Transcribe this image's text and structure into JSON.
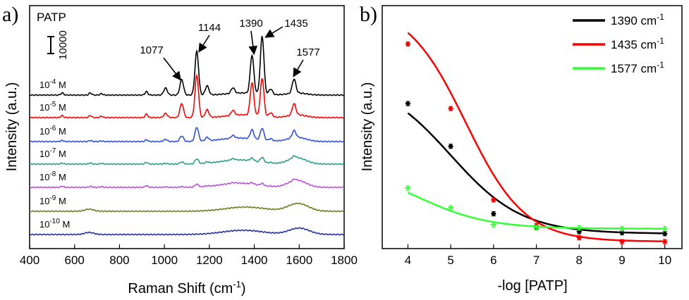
{
  "chart_data": [
    {
      "panel": "a)",
      "type": "line",
      "xlabel": "Raman Shift (cm",
      "xlabel_sup": "-1",
      "xlabel_close": ")",
      "ylabel": "Intensity (a.u.)",
      "xlim": [
        400,
        1800
      ],
      "xticks": [
        "400",
        "600",
        "800",
        "1000",
        "1200",
        "1400",
        "1600",
        "1800"
      ],
      "sample_label": "PATP",
      "scale_bar_label": "10000",
      "peak_labels": [
        "1077",
        "1144",
        "1390",
        "1435",
        "1577"
      ],
      "concentration_unit": "M",
      "series": [
        {
          "label_base": "10",
          "label_exp": "-4",
          "color": "#000000"
        },
        {
          "label_base": "10",
          "label_exp": "-5",
          "color": "#ff0000"
        },
        {
          "label_base": "10",
          "label_exp": "-6",
          "color": "#2e4fd6"
        },
        {
          "label_base": "10",
          "label_exp": "-7",
          "color": "#2a9d8a"
        },
        {
          "label_base": "10",
          "label_exp": "-8",
          "color": "#b84fd9"
        },
        {
          "label_base": "10",
          "label_exp": "-9",
          "color": "#6f7a1e"
        },
        {
          "label_base": "10",
          "label_exp": "-10",
          "color": "#1f2fa0"
        }
      ]
    },
    {
      "panel": "b)",
      "type": "line",
      "xlabel": "-log [PATP]",
      "ylabel": "Intensity (a.u.)",
      "xlim": [
        3.4,
        10.4
      ],
      "ylim": [
        0,
        1
      ],
      "xticks": [
        "4",
        "5",
        "6",
        "7",
        "8",
        "9",
        "10"
      ],
      "x": [
        4,
        5,
        6,
        7,
        8,
        9,
        10
      ],
      "series": [
        {
          "name": "1390 cm",
          "name_sup": "-1",
          "color": "#000000",
          "values": [
            0.645,
            0.43,
            0.09,
            0.02,
            0.0,
            -0.005,
            -0.01
          ],
          "fit": {
            "bottom": -0.01,
            "top": 0.78,
            "x0": 5.0,
            "k": 1.2
          }
        },
        {
          "name": "1435 cm",
          "name_sup": "-1",
          "color": "#ff0000",
          "values": [
            0.945,
            0.62,
            0.16,
            0.03,
            -0.03,
            -0.05,
            -0.05
          ],
          "fit": {
            "bottom": -0.05,
            "top": 1.15,
            "x0": 5.35,
            "k": 1.45
          }
        },
        {
          "name": "1577 cm",
          "name_sup": "-1",
          "color": "#33ff33",
          "values": [
            0.22,
            0.12,
            0.035,
            0.02,
            0.02,
            0.015,
            0.015
          ],
          "fit": {
            "bottom": 0.015,
            "top": 0.34,
            "x0": 4.2,
            "k": 1.2
          }
        }
      ]
    }
  ]
}
